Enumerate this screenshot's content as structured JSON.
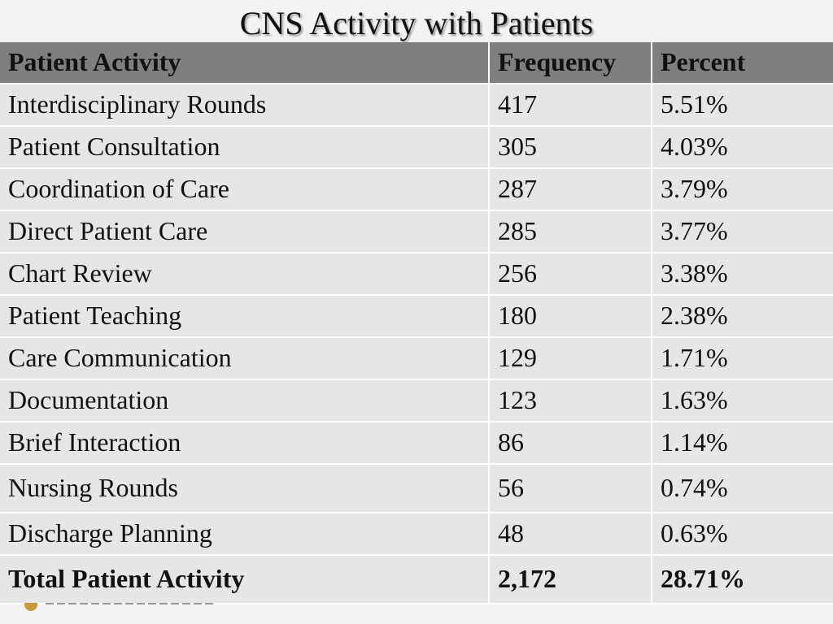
{
  "title": "CNS Activity with Patients",
  "table": {
    "headers": [
      "Patient Activity",
      "Frequency",
      "Percent"
    ],
    "rows": [
      {
        "activity": "Interdisciplinary Rounds",
        "frequency": "417",
        "percent": "5.51%"
      },
      {
        "activity": "Patient Consultation",
        "frequency": "305",
        "percent": "4.03%"
      },
      {
        "activity": "Coordination of Care",
        "frequency": "287",
        "percent": "3.79%"
      },
      {
        "activity": "Direct Patient Care",
        "frequency": "285",
        "percent": "3.77%"
      },
      {
        "activity": "Chart Review",
        "frequency": "256",
        "percent": "3.38%"
      },
      {
        "activity": "Patient Teaching",
        "frequency": "180",
        "percent": "2.38%"
      },
      {
        "activity": "Care Communication",
        "frequency": "129",
        "percent": "1.71%"
      },
      {
        "activity": "Documentation",
        "frequency": "123",
        "percent": "1.63%"
      },
      {
        "activity": "Brief Interaction",
        "frequency": "86",
        "percent": "1.14%"
      },
      {
        "activity": "Nursing Rounds",
        "frequency": "56",
        "percent": "0.74%"
      },
      {
        "activity": "Discharge Planning",
        "frequency": "48",
        "percent": "0.63%"
      }
    ],
    "total": {
      "activity": "Total Patient Activity",
      "frequency": "2,172",
      "percent": "28.71%"
    }
  },
  "colors": {
    "header_bg": "#7f7f7f",
    "row_bg": "#e6e6e6",
    "slide_bg": "#f3f3f3"
  }
}
